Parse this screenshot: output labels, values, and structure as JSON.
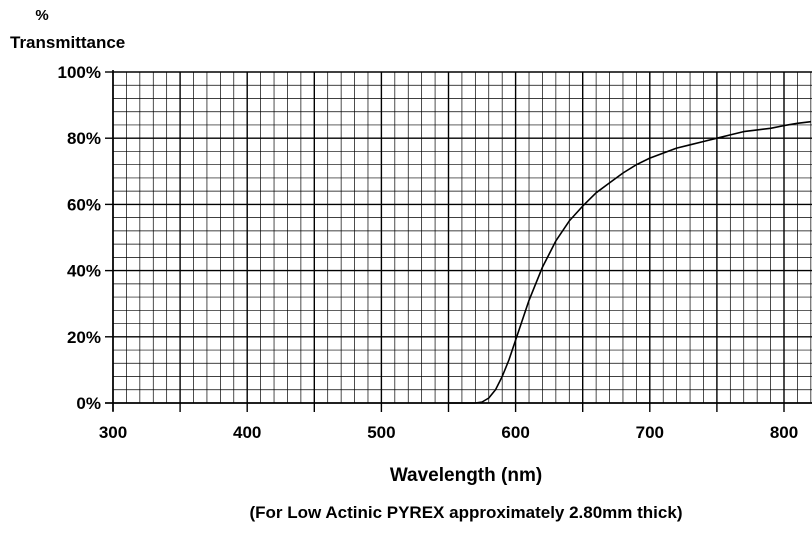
{
  "chart_data": {
    "type": "line",
    "ylabel_top": "%",
    "ylabel": "Transmittance",
    "xlabel": "Wavelength (nm)",
    "caption": "(For Low Actinic PYREX approximately 2.80mm thick)",
    "xlim": [
      300,
      820
    ],
    "ylim": [
      0,
      100
    ],
    "x_ticks": [
      300,
      400,
      500,
      600,
      700,
      800
    ],
    "x_tick_labels": [
      "300",
      "400",
      "500",
      "600",
      "700",
      "800"
    ],
    "y_ticks": [
      0,
      20,
      40,
      60,
      80,
      100
    ],
    "y_tick_labels": [
      "0%",
      "20%",
      "40%",
      "60%",
      "80%",
      "100%"
    ],
    "grid": true,
    "grid_minor_step_x": 10,
    "grid_minor_step_y": 4,
    "colors": {
      "line": "#000000",
      "grid_major": "#000000",
      "grid_minor": "#000000"
    },
    "series": [
      {
        "x": [
          550,
          570,
          575,
          580,
          585,
          590,
          595,
          600,
          605,
          610,
          615,
          620,
          625,
          630,
          640,
          650,
          660,
          670,
          680,
          690,
          700,
          710,
          720,
          730,
          740,
          750,
          760,
          770,
          780,
          790,
          800,
          810,
          820
        ],
        "values": [
          0,
          0,
          0.3,
          1.5,
          4,
          8,
          13,
          19,
          25,
          31,
          36,
          41,
          45,
          49,
          55,
          59.5,
          63.5,
          66.5,
          69.5,
          72,
          74,
          75.5,
          77,
          78,
          79,
          80,
          81,
          82,
          82.5,
          83,
          83.8,
          84.5,
          85
        ]
      }
    ]
  }
}
